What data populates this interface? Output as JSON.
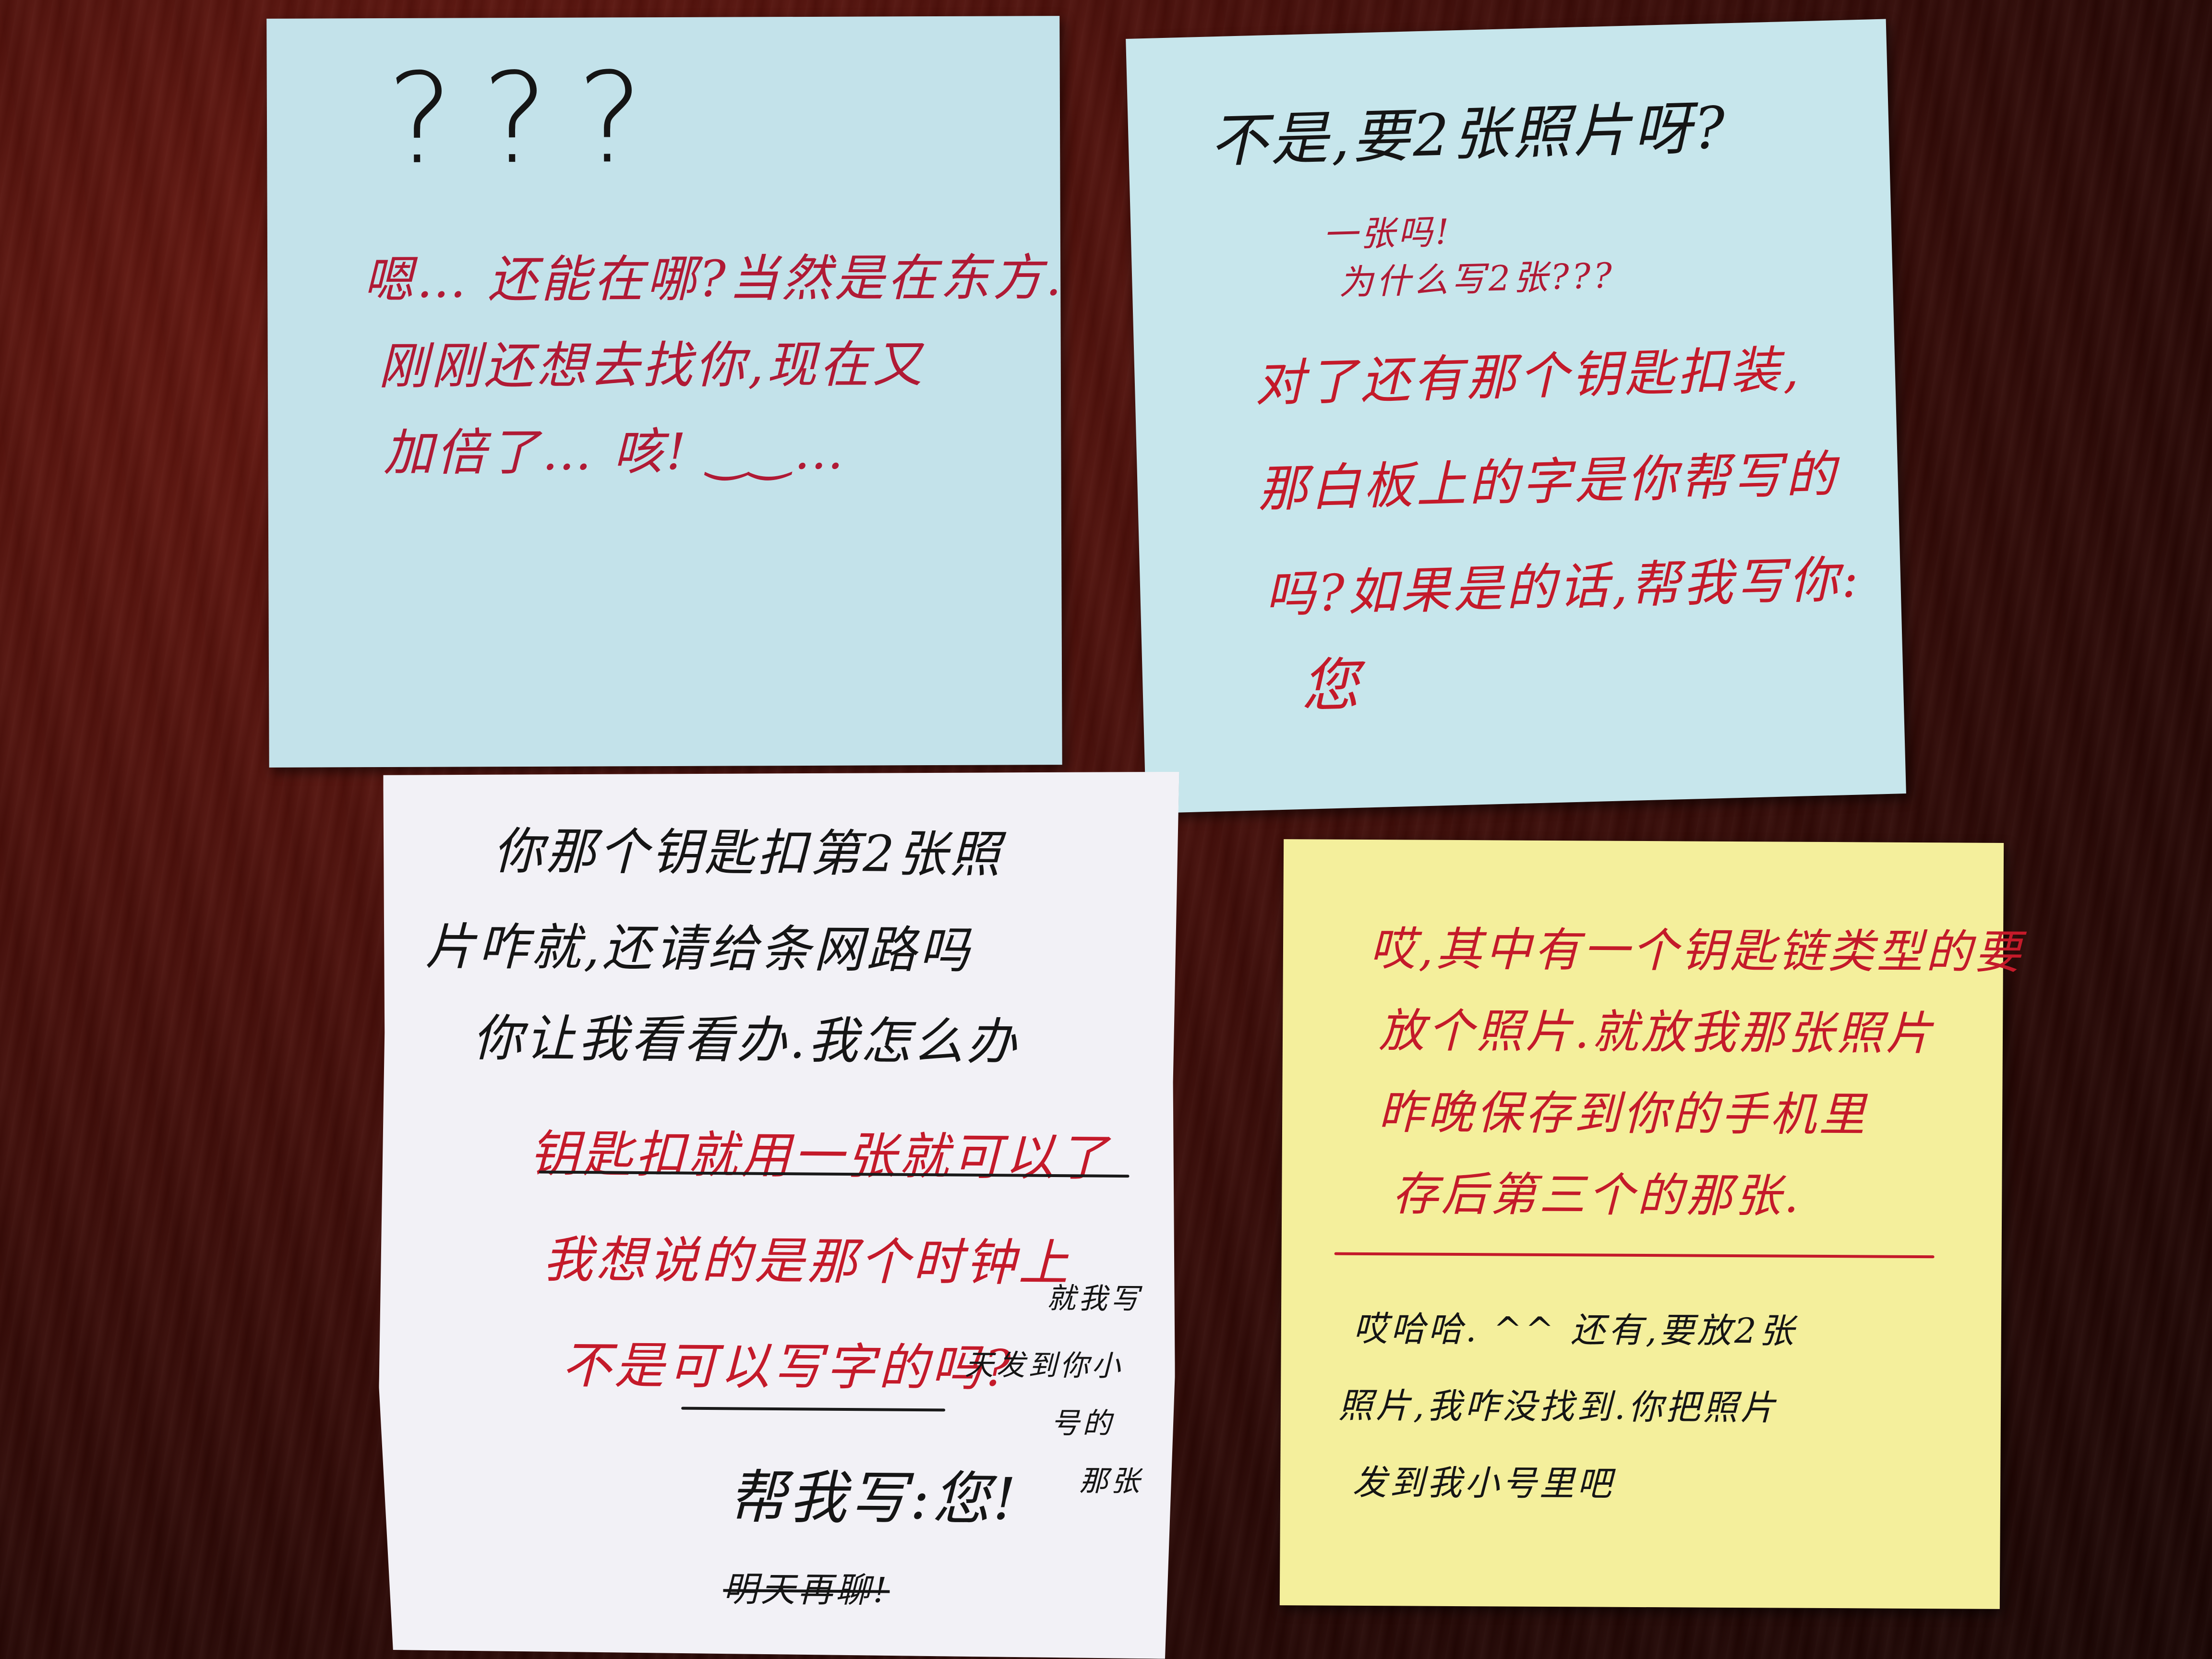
{
  "notes": {
    "top_left": {
      "color": "#c3e2ea",
      "q": "???",
      "l1": "嗯… 还能在哪?当然是在东方.",
      "l2": "刚刚还想去找你,现在又",
      "l3": "加倍了… 咳! ‿‿…"
    },
    "top_right": {
      "color": "#c7e6ec",
      "l1": "不是,要2张照片呀?",
      "l2": "一张吗!",
      "l3": "为什么写2张???",
      "l4": "对了还有那个钥匙扣装,",
      "l5": "那白板上的字是你帮写的",
      "l6": "吗?如果是的话,帮我写你:",
      "l7": "您"
    },
    "bottom_left": {
      "color": "#f2f1f6",
      "l1": "你那个钥匙扣第2张照",
      "l2": "片咋就,还请给条网路吗",
      "l3": "你让我看看办.我怎么办",
      "l4": "钥匙扣就用一张就可以了",
      "l5": "我想说的是那个时钟上",
      "l6": "不是可以写字的吗?",
      "l7": "帮我写:您!",
      "l8": "明天再聊!",
      "side1": "就我写",
      "side2": "天发到你小",
      "side3": "号的",
      "side4": "那张"
    },
    "bottom_right": {
      "color": "#f4ef9c",
      "l1": "哎,其中有一个钥匙链类型的要",
      "l2": "放个照片.就放我那张照片",
      "l3": "昨晚保存到你的手机里",
      "l4": "存后第三个的那张.",
      "l5": "哎哈哈. ^^ 还有,要放2张",
      "l6": "照片,我咋没找到.你把照片",
      "l7": "发到我小号里吧"
    }
  }
}
